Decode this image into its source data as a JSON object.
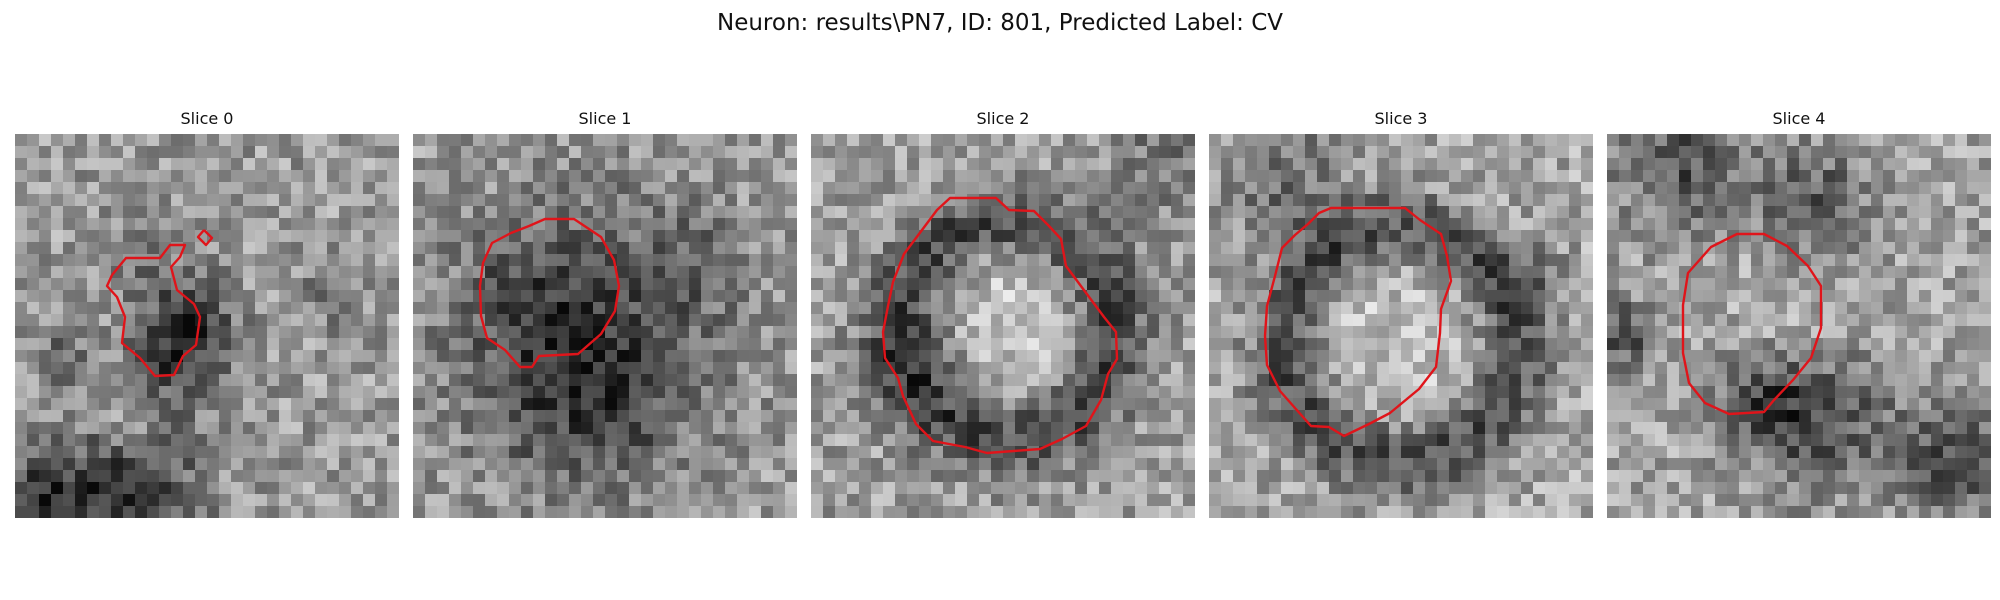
{
  "figure": {
    "title": "Neuron: results\\PN7, ID: 801, Predicted Label: CV"
  },
  "colors": {
    "background": "#ffffff",
    "contour": "#e0141a",
    "pixel_colormap": "grayscale"
  },
  "panels": [
    {
      "title": "Slice 0",
      "contour_shape": "irregular blob",
      "contour_color": "#e0141a"
    },
    {
      "title": "Slice 1",
      "contour_shape": "rounded polygon",
      "contour_color": "#e0141a"
    },
    {
      "title": "Slice 2",
      "contour_shape": "rounded polygon",
      "contour_color": "#e0141a"
    },
    {
      "title": "Slice 3",
      "contour_shape": "rounded polygon",
      "contour_color": "#e0141a"
    },
    {
      "title": "Slice 4",
      "contour_shape": "rounded polygon",
      "contour_color": "#e0141a"
    }
  ]
}
